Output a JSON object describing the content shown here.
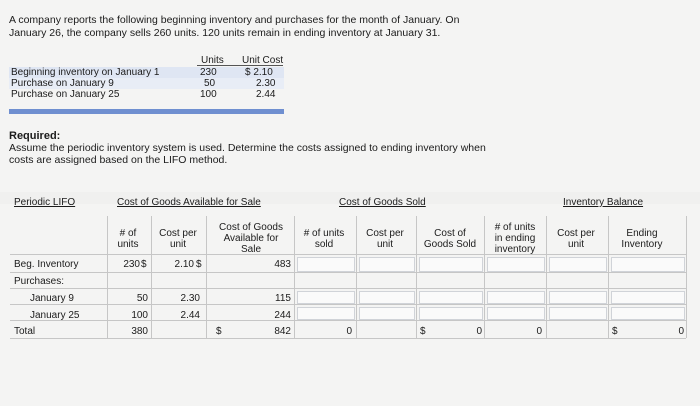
{
  "problem": {
    "line1": "A company reports the following beginning inventory and purchases for the month of January. On",
    "line2": "January 26, the company sells 260 units. 120 units remain in ending inventory at January 31."
  },
  "inventory_table": {
    "headers": {
      "units": "Units",
      "unit_cost": "Unit Cost"
    },
    "rows": [
      {
        "label": "Beginning inventory on January 1",
        "units": "230",
        "unit_cost": "$ 2.10"
      },
      {
        "label": "Purchase on January 9",
        "units": "50",
        "unit_cost": "2.30"
      },
      {
        "label": "Purchase on January 25",
        "units": "100",
        "unit_cost": "2.44"
      }
    ]
  },
  "required": {
    "title": "Required:",
    "line1": "Assume the periodic inventory system is used. Determine the costs assigned to ending inventory when",
    "line2": "costs are assigned based on the LIFO method."
  },
  "lifo": {
    "section_label": "Periodic LIFO",
    "groups": {
      "cogs_available": "Cost of Goods Available for Sale",
      "cogs_sold": "Cost of Goods Sold",
      "inventory_balance": "Inventory Balance"
    },
    "col_headers": {
      "units_l1": "# of",
      "units_l2": "units",
      "cost_per_l1": "Cost per",
      "cost_per_l2": "unit",
      "cogs_avail_l1": "Cost of Goods",
      "cogs_avail_l2": "Available for",
      "cogs_avail_l3": "Sale",
      "units_sold_l1": "# of units",
      "units_sold_l2": "sold",
      "cost_per_sold_l1": "Cost per",
      "cost_per_sold_l2": "unit",
      "cost_goods_sold_l1": "Cost of",
      "cost_goods_sold_l2": "Goods Sold",
      "units_end_l1": "# of units",
      "units_end_l2": "in ending",
      "units_end_l3": "inventory",
      "cost_per_end_l1": "Cost per",
      "cost_per_end_l2": "unit",
      "ending_inv_l1": "Ending",
      "ending_inv_l2": "Inventory"
    },
    "rows": {
      "beg": {
        "label": "Beg. Inventory",
        "units": "230",
        "cost": "2.10",
        "available": "483"
      },
      "purchases": {
        "label": "Purchases:"
      },
      "jan9": {
        "label": "January 9",
        "units": "50",
        "cost": "2.30",
        "available": "115"
      },
      "jan25": {
        "label": "January 25",
        "units": "100",
        "cost": "2.44",
        "available": "244"
      },
      "total": {
        "label": "Total",
        "units": "380",
        "available": "842",
        "units_sold": "0",
        "cogs": "0",
        "units_end": "0",
        "ending_inv": "0"
      }
    },
    "currency": "$"
  }
}
